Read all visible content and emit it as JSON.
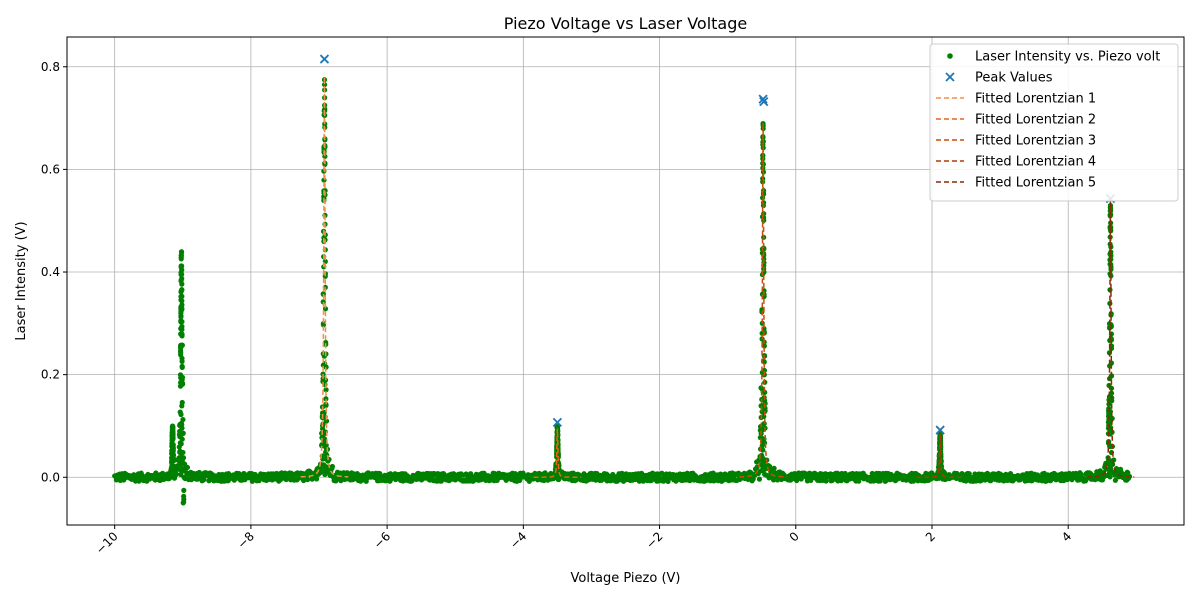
{
  "chart_data": {
    "type": "scatter",
    "title": "Piezo Voltage vs Laser Voltage",
    "xlabel": "Voltage Piezo (V)",
    "ylabel": "Laser Intensity (V)",
    "xlim": [
      -10.7,
      5.7
    ],
    "ylim": [
      -0.093,
      0.858
    ],
    "xticks": [
      -10,
      -8,
      -6,
      -4,
      -2,
      0,
      2,
      4
    ],
    "xtick_labels": [
      "−10",
      "−8",
      "−6",
      "−4",
      "−2",
      "0",
      "2",
      "4"
    ],
    "yticks": [
      0.0,
      0.2,
      0.4,
      0.6,
      0.8
    ],
    "ytick_labels": [
      "0.0",
      "0.2",
      "0.4",
      "0.6",
      "0.8"
    ],
    "grid": true,
    "legend_position": "top-right",
    "series": [
      {
        "name": "Laser Intensity vs. Piezo volt",
        "kind": "scatter",
        "color": "#008000",
        "x_range": [
          -10.0,
          4.9
        ],
        "baseline": 0.0,
        "peaks": [
          {
            "x": -9.02,
            "height": 0.445
          },
          {
            "x": -9.15,
            "height": 0.1
          },
          {
            "x": -6.92,
            "height": 0.775
          },
          {
            "x": -3.5,
            "height": 0.1
          },
          {
            "x": -0.48,
            "height": 0.69
          },
          {
            "x": 2.12,
            "height": 0.085
          },
          {
            "x": 4.62,
            "height": 0.53
          }
        ],
        "dip": {
          "x": -8.98,
          "y": -0.05
        }
      },
      {
        "name": "Peak Values",
        "kind": "marker",
        "color": "#1f77b4",
        "x": [
          -6.92,
          -3.5,
          -0.48,
          -0.47,
          2.12,
          4.62
        ],
        "y": [
          0.815,
          0.107,
          0.737,
          0.732,
          0.092,
          0.543
        ]
      }
    ],
    "fits": [
      {
        "name": "Fitted Lorentzian 1",
        "color": "#f28e4c",
        "center": -6.92,
        "amplitude": 0.78
      },
      {
        "name": "Fitted Lorentzian 2",
        "color": "#e6651a",
        "center": -3.5,
        "amplitude": 0.095
      },
      {
        "name": "Fitted Lorentzian 3",
        "color": "#cc4c0a",
        "center": -0.48,
        "amplitude": 0.69
      },
      {
        "name": "Fitted Lorentzian 4",
        "color": "#b03808",
        "center": 2.12,
        "amplitude": 0.085
      },
      {
        "name": "Fitted Lorentzian 5",
        "color": "#8a2a05",
        "center": 4.62,
        "amplitude": 0.54
      }
    ]
  }
}
